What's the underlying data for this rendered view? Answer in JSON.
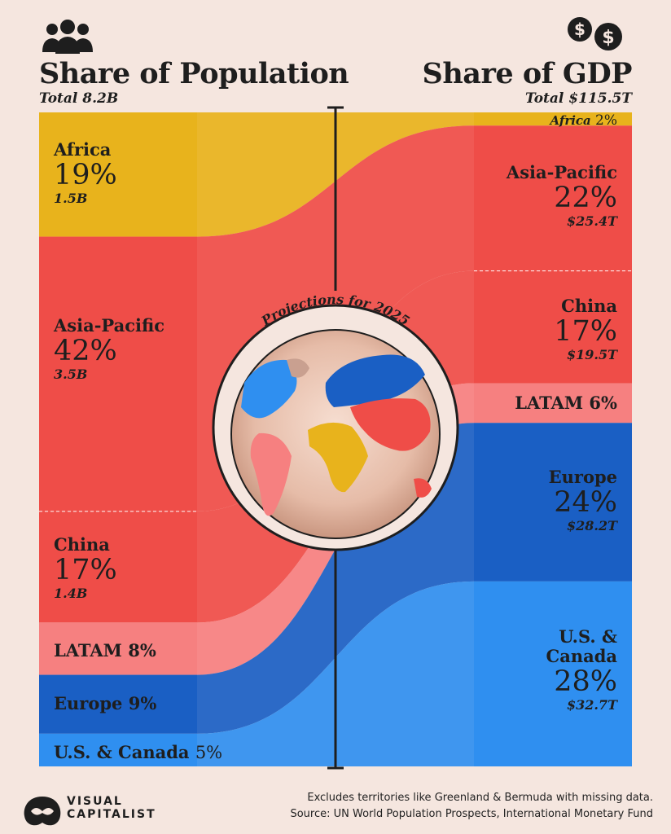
{
  "header": {
    "left_title": "Share of Population",
    "left_subtitle": "Total 8.2B",
    "right_title": "Share of GDP",
    "right_subtitle": "Total $115.5T",
    "arc_label": "Projections for 2025"
  },
  "icons": {
    "left": "people-icon",
    "right": "coins-icon",
    "logo": "visual-capitalist-logo"
  },
  "chart_data": {
    "type": "sankey",
    "title": "Share of Population vs Share of GDP",
    "left": {
      "label": "Share of Population",
      "total": "Total 8.2B",
      "segments": [
        {
          "region": "Africa",
          "share": 19,
          "pct_label": "19%",
          "value_label": "1.5B",
          "color": "#e8b31c"
        },
        {
          "region": "Asia-Pacific",
          "share": 42,
          "pct_label": "42%",
          "value_label": "3.5B",
          "color": "#ef4d48"
        },
        {
          "region": "China",
          "share": 17,
          "pct_label": "17%",
          "value_label": "1.4B",
          "color": "#ef4d48"
        },
        {
          "region": "LATAM",
          "share": 8,
          "pct_label": "LATAM 8%",
          "value_label": "",
          "color": "#f68080"
        },
        {
          "region": "Europe",
          "share": 9,
          "pct_label": "Europe 9%",
          "value_label": "",
          "color": "#1a5fc4"
        },
        {
          "region": "U.S. & Canada",
          "share": 5,
          "pct_label": "U.S. & Canada 5%",
          "value_label": "",
          "color": "#2f8ff0"
        }
      ]
    },
    "right": {
      "label": "Share of GDP",
      "total": "Total $115.5T",
      "segments": [
        {
          "region": "Africa",
          "share": 2,
          "pct_label": "Africa 2%",
          "value_label": "",
          "color": "#e8b31c"
        },
        {
          "region": "Asia-Pacific",
          "share": 22,
          "pct_label": "22%",
          "value_label": "$25.4T",
          "color": "#ef4d48"
        },
        {
          "region": "China",
          "share": 17,
          "pct_label": "17%",
          "value_label": "$19.5T",
          "color": "#ef4d48"
        },
        {
          "region": "LATAM",
          "share": 6,
          "pct_label": "LATAM 6%",
          "value_label": "",
          "color": "#f68080"
        },
        {
          "region": "Europe",
          "share": 24,
          "pct_label": "24%",
          "value_label": "$28.2T",
          "color": "#1a5fc4"
        },
        {
          "region": "U.S. & Canada",
          "share": 28,
          "pct_label": "28%",
          "value_label": "$32.7T",
          "color": "#2f8ff0"
        }
      ]
    }
  },
  "labels": {
    "left": {
      "africa_name": "Africa",
      "africa_pct": "19%",
      "africa_val": "1.5B",
      "asia_name": "Asia-Pacific",
      "asia_pct": "42%",
      "asia_val": "3.5B",
      "china_name": "China",
      "china_pct": "17%",
      "china_val": "1.4B",
      "latam": "LATAM 8%",
      "europe": "Europe 9%",
      "us_name": "U.S. & Canada",
      "us_pct": "5%"
    },
    "right": {
      "africa_name": "Africa",
      "africa_pct": "2%",
      "asia_name": "Asia-Pacific",
      "asia_pct": "22%",
      "asia_val": "$25.4T",
      "china_name": "China",
      "china_pct": "17%",
      "china_val": "$19.5T",
      "latam": "LATAM 6%",
      "europe_name": "Europe",
      "europe_pct": "24%",
      "europe_val": "$28.2T",
      "us_name_1": "U.S. &",
      "us_name_2": "Canada",
      "us_pct": "28%",
      "us_val": "$32.7T"
    }
  },
  "footer": {
    "note": "Excludes territories like Greenland & Bermuda with missing data.",
    "source": "Source: UN World Population Prospects, International Monetary Fund",
    "logo_line1": "VISUAL",
    "logo_line2": "CAPITALIST"
  }
}
